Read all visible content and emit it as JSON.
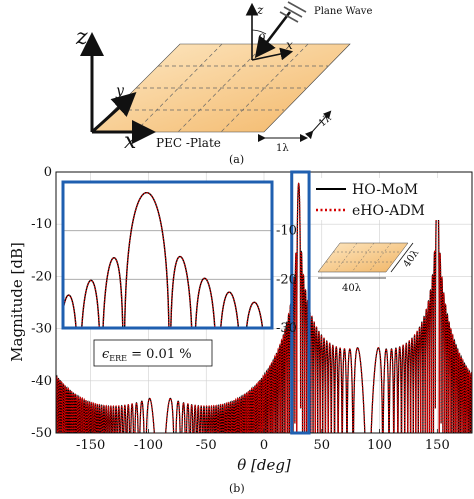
{
  "figure": {
    "top": {
      "axis_z": "z",
      "axis_y": "y",
      "axis_x": "x",
      "wave_z": "z",
      "wave_x": "x",
      "wave_theta": "θ",
      "wave_theta_sub": "i",
      "plane_wave": "Plane Wave",
      "plate": "PEC -Plate",
      "dim_a": "1λ",
      "dim_b": "1λ",
      "caption": "(a)"
    },
    "bottom": {
      "caption": "(b)",
      "error_eps": "ϵ",
      "error_sub": "ERE",
      "error_value": " = 0.01 %",
      "inset_dim_a": "40λ",
      "inset_dim_b": "40λ"
    },
    "colors": {
      "plate": "#f6c98a",
      "mom": "#000000",
      "adm": "#d40000",
      "highlight": "#1f5fb0"
    }
  },
  "chart_data": {
    "type": "line",
    "xlabel": "θ [deg]",
    "ylabel": "Magnitude [dB]",
    "xlim": [
      -180,
      180
    ],
    "ylim": [
      -50,
      0
    ],
    "xticks": [
      -150,
      -100,
      -50,
      0,
      50,
      100,
      150
    ],
    "yticks": [
      0,
      -10,
      -20,
      -30,
      -40,
      -50
    ],
    "xtick_labels": [
      "-150",
      "-100",
      "-50",
      "0",
      "50",
      "100",
      "150"
    ],
    "ytick_labels": [
      "0",
      "-10",
      "-20",
      "-30",
      "-40",
      "-50"
    ],
    "grid": true,
    "legend_position": "top-right",
    "series": [
      {
        "name": "HO-MoM",
        "style": "solid",
        "color": "#000000"
      },
      {
        "name": "eHO-ADM",
        "style": "dotted",
        "color": "#d40000"
      }
    ],
    "peaks_deg": [
      30,
      150
    ],
    "peak_level_db": 0,
    "highlight_range_deg": [
      24,
      39
    ],
    "zoom_inset": {
      "ylim": [
        -30,
        0
      ],
      "yticks": [
        -10,
        -20,
        -30
      ],
      "ytick_labels": [
        "-10",
        "-20",
        "-30"
      ]
    }
  }
}
